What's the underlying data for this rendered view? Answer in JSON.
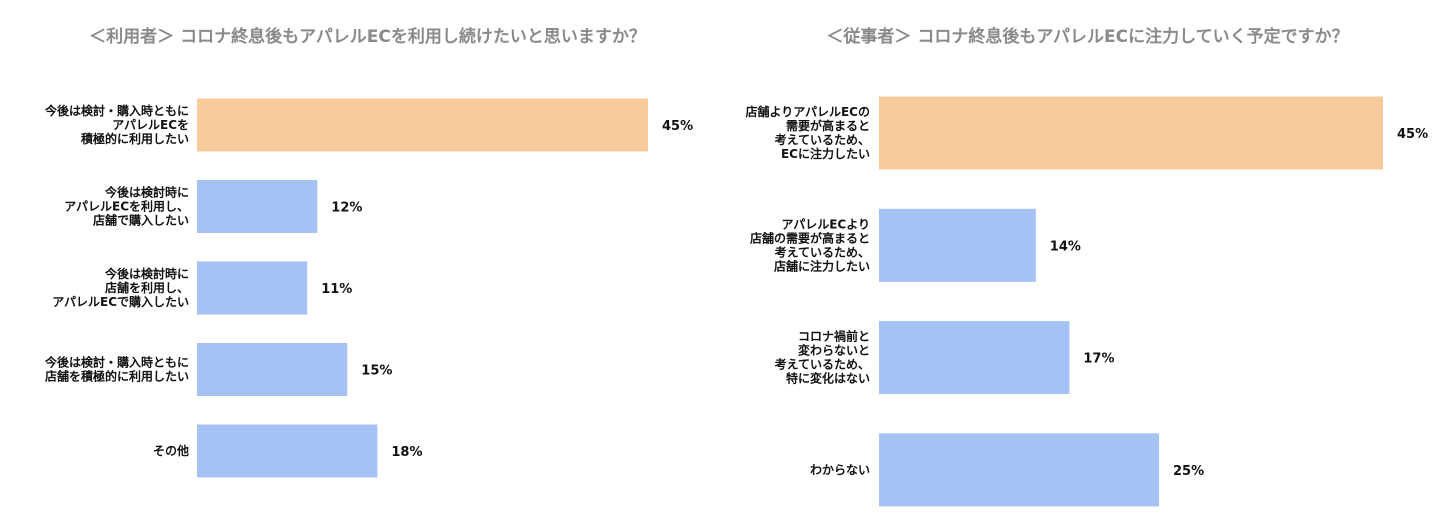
{
  "colors": {
    "highlight": "#F8CB9C",
    "bar": "#A4C2F4",
    "title": "#8A8A8A",
    "text": "#111111"
  },
  "chart_data": [
    {
      "type": "bar",
      "orientation": "horizontal",
      "title": "＜利用者＞ コロナ終息後もアパレルECを利用し続けたいと思いますか？",
      "categories": [
        [
          "今後は検討・購入時ともに",
          "アパレルECを",
          "積極的に利用したい"
        ],
        [
          "今後は検討時に",
          "アパレルECを利用し、",
          "店舗で購入したい"
        ],
        [
          "今後は検討時に",
          "店舗を利用し、",
          "アパレルECで購入したい"
        ],
        [
          "今後は検討・購入時ともに",
          "店舗を積極的に利用したい"
        ],
        [
          "その他"
        ]
      ],
      "values": [
        45,
        12,
        11,
        15,
        18
      ],
      "value_labels": [
        "45%",
        "12%",
        "11%",
        "15%",
        "18%"
      ],
      "unit": "%",
      "highlight_index": 0,
      "grid": false,
      "xlim": [
        0,
        45
      ]
    },
    {
      "type": "bar",
      "orientation": "horizontal",
      "title": "＜従事者＞ コロナ終息後もアパレルECに注力していく予定ですか？",
      "categories": [
        [
          "店舗よりアパレルECの",
          "需要が高まると",
          "考えているため、",
          "ECに注力したい"
        ],
        [
          "アパレルECより",
          "店舗の需要が高まると",
          "考えているため、",
          "店舗に注力したい"
        ],
        [
          "コロナ禍前と",
          "変わらないと",
          "考えているため、",
          "特に変化はない"
        ],
        [
          "わからない"
        ]
      ],
      "values": [
        45,
        14,
        17,
        25
      ],
      "value_labels": [
        "45%",
        "14%",
        "17%",
        "25%"
      ],
      "unit": "%",
      "highlight_index": 0,
      "grid": false,
      "xlim": [
        0,
        45
      ]
    }
  ]
}
